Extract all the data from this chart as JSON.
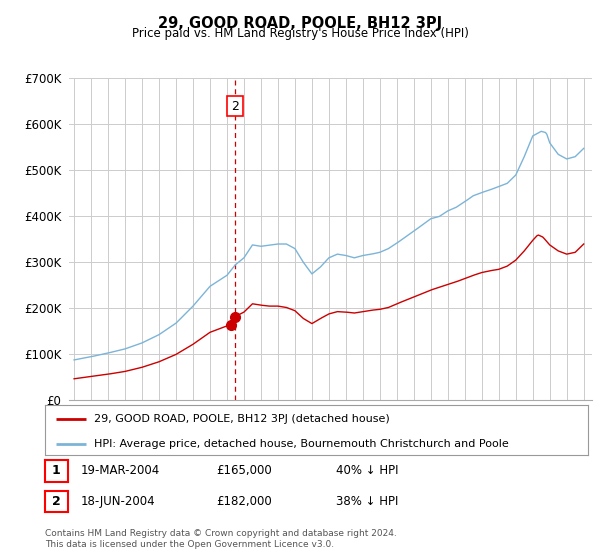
{
  "title": "29, GOOD ROAD, POOLE, BH12 3PJ",
  "subtitle": "Price paid vs. HM Land Registry's House Price Index (HPI)",
  "hpi_color": "#7cb4d8",
  "price_color": "#cc0000",
  "dashed_color": "#cc0000",
  "bg_color": "#ffffff",
  "grid_color": "#cccccc",
  "ylim": [
    0,
    700000
  ],
  "yticks": [
    0,
    100000,
    200000,
    300000,
    400000,
    500000,
    600000,
    700000
  ],
  "ytick_labels": [
    "£0",
    "£100K",
    "£200K",
    "£300K",
    "£400K",
    "£500K",
    "£600K",
    "£700K"
  ],
  "legend_label_red": "29, GOOD ROAD, POOLE, BH12 3PJ (detached house)",
  "legend_label_blue": "HPI: Average price, detached house, Bournemouth Christchurch and Poole",
  "transaction1_date": "19-MAR-2004",
  "transaction1_price": "£165,000",
  "transaction1_hpi": "40% ↓ HPI",
  "transaction2_date": "18-JUN-2004",
  "transaction2_price": "£182,000",
  "transaction2_hpi": "38% ↓ HPI",
  "footnote": "Contains HM Land Registry data © Crown copyright and database right 2024.\nThis data is licensed under the Open Government Licence v3.0.",
  "dashed_line_x": 2004.47,
  "transaction1_x": 2004.22,
  "transaction1_y": 165000,
  "transaction2_x": 2004.47,
  "transaction2_y": 182000,
  "xlim_left": 1994.7,
  "xlim_right": 2025.5
}
